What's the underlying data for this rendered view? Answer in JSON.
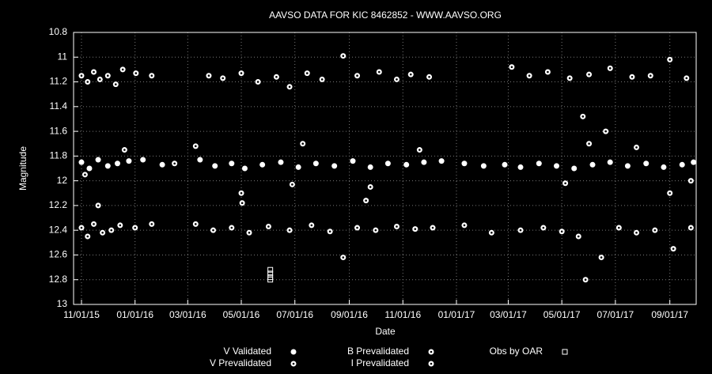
{
  "chart_data": {
    "type": "scatter",
    "title": "AAVSO DATA FOR KIC 8462852 - WWW.AAVSO.ORG",
    "x_label": "Date",
    "y_label": "Magnitude",
    "xlim": [
      "2015-10-23",
      "2017-10-01"
    ],
    "xticks": [
      {
        "value": "2015-11-01",
        "label": "11/01/15"
      },
      {
        "value": "2016-01-01",
        "label": "01/01/16"
      },
      {
        "value": "2016-03-01",
        "label": "03/01/16"
      },
      {
        "value": "2016-05-01",
        "label": "05/01/16"
      },
      {
        "value": "2016-07-01",
        "label": "07/01/16"
      },
      {
        "value": "2016-09-01",
        "label": "09/01/16"
      },
      {
        "value": "2016-11-01",
        "label": "11/01/16"
      },
      {
        "value": "2017-01-01",
        "label": "01/01/17"
      },
      {
        "value": "2017-03-01",
        "label": "03/01/17"
      },
      {
        "value": "2017-05-01",
        "label": "05/01/17"
      },
      {
        "value": "2017-07-01",
        "label": "07/01/17"
      },
      {
        "value": "2017-09-01",
        "label": "09/01/17"
      }
    ],
    "ylim": [
      10.8,
      13
    ],
    "y_reversed": true,
    "yticks": [
      10.8,
      11,
      11.2,
      11.4,
      11.6,
      11.8,
      12,
      12.2,
      12.4,
      12.6,
      12.8,
      13
    ],
    "grid": true,
    "legend": "bottom",
    "series": [
      {
        "name": "V Validated",
        "color": "#ffffff",
        "marker": "filled",
        "x": [
          "2015-11-01",
          "2015-11-10",
          "2015-11-20",
          "2015-12-01",
          "2015-12-12",
          "2015-12-25",
          "2016-01-10",
          "2016-02-01",
          "2016-03-15",
          "2016-04-01",
          "2016-04-20",
          "2016-05-05",
          "2016-05-25",
          "2016-06-15",
          "2016-07-05",
          "2016-07-25",
          "2016-08-15",
          "2016-09-05",
          "2016-09-25",
          "2016-10-15",
          "2016-11-05",
          "2016-11-25",
          "2016-12-15",
          "2017-01-10",
          "2017-02-01",
          "2017-02-25",
          "2017-03-15",
          "2017-04-05",
          "2017-04-25",
          "2017-05-15",
          "2017-06-05",
          "2017-06-25",
          "2017-07-15",
          "2017-08-05",
          "2017-08-25",
          "2017-09-15",
          "2017-09-28"
        ],
        "values": [
          11.85,
          11.9,
          11.83,
          11.88,
          11.86,
          11.84,
          11.83,
          11.87,
          11.83,
          11.88,
          11.86,
          11.9,
          11.87,
          11.85,
          11.89,
          11.86,
          11.88,
          11.84,
          11.89,
          11.86,
          11.87,
          11.85,
          11.84,
          11.86,
          11.88,
          11.87,
          11.89,
          11.86,
          11.88,
          11.9,
          11.87,
          11.85,
          11.88,
          11.86,
          11.89,
          11.87,
          11.85
        ]
      },
      {
        "name": "V Prevalidated",
        "color": "#ffffff",
        "marker": "dotted",
        "x": [
          "2015-11-05",
          "2015-12-20",
          "2016-02-15",
          "2016-03-10",
          "2016-05-01",
          "2016-05-02",
          "2016-06-28",
          "2016-07-10",
          "2016-09-20",
          "2016-09-25",
          "2016-11-20",
          "2017-05-05",
          "2017-05-25",
          "2017-06-01",
          "2017-06-20",
          "2017-07-25",
          "2017-09-01",
          "2017-09-25"
        ],
        "values": [
          11.95,
          11.75,
          11.86,
          11.72,
          12.1,
          12.18,
          12.03,
          11.7,
          12.16,
          12.05,
          11.75,
          12.02,
          11.48,
          11.7,
          11.6,
          11.73,
          12.1,
          12
        ]
      },
      {
        "name": "B Prevalidated",
        "color": "#ffffff",
        "marker": "dotted",
        "x": [
          "2015-11-01",
          "2015-11-08",
          "2015-11-15",
          "2015-11-20",
          "2015-11-25",
          "2015-12-05",
          "2015-12-15",
          "2016-01-01",
          "2016-01-20",
          "2016-03-10",
          "2016-03-30",
          "2016-04-20",
          "2016-05-10",
          "2016-06-01",
          "2016-06-25",
          "2016-07-20",
          "2016-08-10",
          "2016-08-25",
          "2016-09-10",
          "2016-10-01",
          "2016-10-25",
          "2016-11-15",
          "2016-12-05",
          "2017-01-10",
          "2017-02-10",
          "2017-03-15",
          "2017-04-10",
          "2017-05-01",
          "2017-05-20",
          "2017-05-28",
          "2017-06-15",
          "2017-07-05",
          "2017-07-25",
          "2017-08-15",
          "2017-09-05",
          "2017-09-25"
        ],
        "values": [
          12.38,
          12.45,
          12.35,
          12.2,
          12.42,
          12.4,
          12.36,
          12.38,
          12.35,
          12.35,
          12.4,
          12.38,
          12.42,
          12.37,
          12.4,
          12.36,
          12.41,
          12.62,
          12.38,
          12.4,
          12.37,
          12.39,
          12.38,
          12.36,
          12.42,
          12.4,
          12.38,
          12.41,
          12.45,
          12.8,
          12.62,
          12.38,
          12.42,
          12.4,
          12.55,
          12.38
        ]
      },
      {
        "name": "I Prevalidated",
        "color": "#ffffff",
        "marker": "dotted",
        "x": [
          "2015-11-01",
          "2015-11-08",
          "2015-11-15",
          "2015-11-22",
          "2015-12-01",
          "2015-12-10",
          "2015-12-18",
          "2016-01-02",
          "2016-01-20",
          "2016-03-25",
          "2016-04-10",
          "2016-05-01",
          "2016-05-20",
          "2016-06-10",
          "2016-06-25",
          "2016-07-15",
          "2016-08-01",
          "2016-08-25",
          "2016-09-10",
          "2016-10-05",
          "2016-10-25",
          "2016-11-10",
          "2016-12-01",
          "2017-03-05",
          "2017-03-25",
          "2017-04-15",
          "2017-05-10",
          "2017-06-01",
          "2017-06-25",
          "2017-07-20",
          "2017-08-10",
          "2017-09-01",
          "2017-09-20"
        ],
        "values": [
          11.15,
          11.2,
          11.12,
          11.18,
          11.15,
          11.22,
          11.1,
          11.13,
          11.15,
          11.15,
          11.17,
          11.13,
          11.2,
          11.16,
          11.24,
          11.13,
          11.18,
          10.99,
          11.15,
          11.12,
          11.18,
          11.14,
          11.16,
          11.08,
          11.15,
          11.12,
          11.17,
          11.14,
          11.09,
          11.16,
          11.15,
          11.02,
          11.17
        ]
      },
      {
        "name": "Obs by OAR",
        "color": "#ffffff",
        "marker": "square",
        "x": [
          "2016-06-03",
          "2016-06-03",
          "2016-06-03",
          "2016-06-03"
        ],
        "values": [
          12.72,
          12.75,
          12.78,
          12.8
        ]
      }
    ]
  }
}
